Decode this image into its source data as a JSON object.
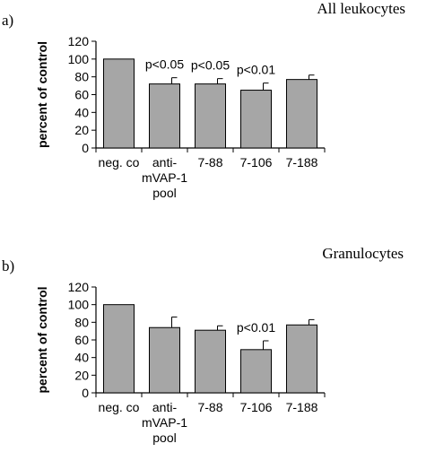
{
  "chart_data": [
    {
      "type": "bar",
      "panel_label": "a)",
      "title": "All leukocytes",
      "ylabel": "percent of control",
      "ylim": [
        0,
        120
      ],
      "yticks": [
        0,
        20,
        40,
        60,
        80,
        100,
        120
      ],
      "categories": [
        "neg. co",
        "anti-mVAP-1 pool",
        "7-88",
        "7-106",
        "7-188"
      ],
      "category_lines": [
        [
          "neg. co"
        ],
        [
          "anti-",
          "mVAP-1",
          "pool"
        ],
        [
          "7-88"
        ],
        [
          "7-106"
        ],
        [
          "7-188"
        ]
      ],
      "values": [
        100,
        72,
        72,
        65,
        77
      ],
      "errors": [
        0,
        7,
        6,
        8,
        5
      ],
      "annotations": [
        "",
        "p<0.05",
        "p<0.05",
        "p<0.01",
        ""
      ],
      "bar_color": "#a6a6a6"
    },
    {
      "type": "bar",
      "panel_label": "b)",
      "title": "Granulocytes",
      "ylabel": "percent of control",
      "ylim": [
        0,
        120
      ],
      "yticks": [
        0,
        20,
        40,
        60,
        80,
        100,
        120
      ],
      "categories": [
        "neg. co",
        "anti-mVAP-1 pool",
        "7-88",
        "7-106",
        "7-188"
      ],
      "category_lines": [
        [
          "neg. co"
        ],
        [
          "anti-",
          "mVAP-1",
          "pool"
        ],
        [
          "7-88"
        ],
        [
          "7-106"
        ],
        [
          "7-188"
        ]
      ],
      "values": [
        100,
        74,
        71,
        49,
        77
      ],
      "errors": [
        0,
        12,
        5,
        10,
        6
      ],
      "annotations": [
        "",
        "",
        "",
        "p<0.01",
        ""
      ],
      "bar_color": "#a6a6a6"
    }
  ]
}
